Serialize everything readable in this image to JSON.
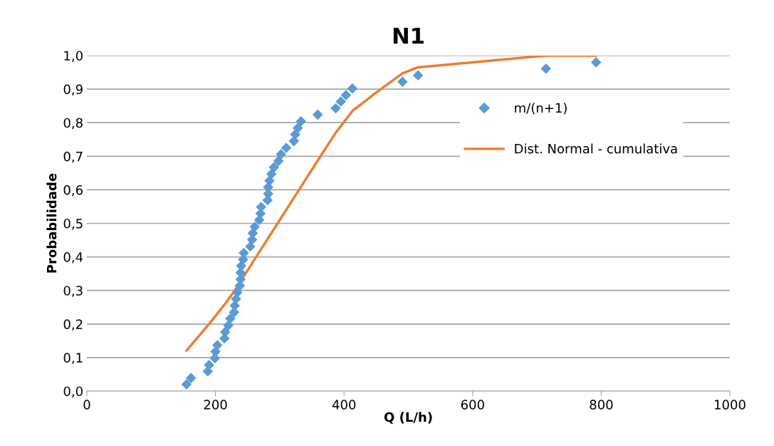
{
  "chart_data": {
    "type": "scatter",
    "title": "N1",
    "xlabel": "Q (L/h)",
    "ylabel": "Probabilidade",
    "xlim": [
      0,
      1000
    ],
    "xticks": [
      0,
      200,
      400,
      600,
      800,
      1000
    ],
    "ylim": [
      0,
      1.0
    ],
    "yticks": [
      {
        "value": 0,
        "label": "0,0"
      },
      {
        "value": 0.1,
        "label": "0,1"
      },
      {
        "value": 0.2,
        "label": "0,2"
      },
      {
        "value": 0.3,
        "label": "0,3"
      },
      {
        "value": 0.4,
        "label": "0,4"
      },
      {
        "value": 0.5,
        "label": "0,5"
      },
      {
        "value": 0.6,
        "label": "0,6"
      },
      {
        "value": 0.7,
        "label": "0,7"
      },
      {
        "value": 0.8,
        "label": "0,8"
      },
      {
        "value": 0.9,
        "label": "0,9"
      },
      {
        "value": 1.0,
        "label": "1,0"
      }
    ],
    "grid": "y",
    "legend": "right",
    "series": [
      {
        "name": "m/(n+1)",
        "marker": "diamond",
        "color": "#5b9bd5",
        "x": [
          155,
          162,
          188,
          190,
          199,
          200,
          203,
          214,
          215,
          220,
          223,
          229,
          230,
          232,
          234,
          238,
          239,
          239,
          240,
          243,
          244,
          254,
          257,
          258,
          261,
          268,
          270,
          271,
          281,
          282,
          282,
          284,
          287,
          291,
          298,
          302,
          310,
          322,
          324,
          328,
          333,
          359,
          387,
          395,
          403,
          413,
          491,
          515,
          714,
          792
        ],
        "values": [
          0.02,
          0.039,
          0.059,
          0.078,
          0.098,
          0.118,
          0.137,
          0.157,
          0.176,
          0.196,
          0.216,
          0.235,
          0.255,
          0.275,
          0.294,
          0.314,
          0.333,
          0.353,
          0.373,
          0.392,
          0.412,
          0.431,
          0.451,
          0.471,
          0.49,
          0.51,
          0.529,
          0.549,
          0.569,
          0.588,
          0.608,
          0.627,
          0.647,
          0.667,
          0.686,
          0.706,
          0.725,
          0.745,
          0.765,
          0.784,
          0.804,
          0.824,
          0.843,
          0.863,
          0.882,
          0.902,
          0.922,
          0.941,
          0.961,
          0.98
        ]
      },
      {
        "name": "Dist. Normal - cumulativa",
        "type": "line",
        "marker": "none",
        "line_style": "solid",
        "color": "#ed7d31",
        "x": [
          155,
          190,
          215,
          230,
          250,
          270,
          300,
          330,
          360,
          387,
          413,
          450,
          491,
          515,
          600,
          714,
          792
        ],
        "values": [
          0.121,
          0.2,
          0.26,
          0.3,
          0.36,
          0.42,
          0.51,
          0.6,
          0.69,
          0.77,
          0.835,
          0.89,
          0.947,
          0.965,
          0.98,
          1.0,
          1.0
        ]
      }
    ]
  }
}
